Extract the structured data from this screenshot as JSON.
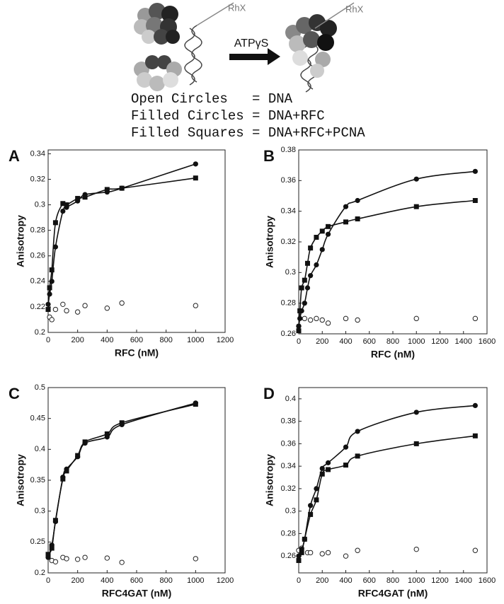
{
  "header": {
    "rhx_left": "RhX",
    "rhx_right": "RhX",
    "arrow_label": "ATPγS",
    "legend": [
      "Open Circles   = DNA",
      "Filled Circles = DNA+RFC",
      "Filled Squares = DNA+RFC+PCNA"
    ]
  },
  "chart_data": [
    {
      "type": "scatter",
      "panel_label": "A",
      "xlabel": "RFC (nM)",
      "ylabel": "Anisotropy",
      "xlim": [
        0,
        1200
      ],
      "xticks": [
        0,
        200,
        400,
        600,
        800,
        1000,
        1200
      ],
      "ylim": [
        0.2,
        0.343
      ],
      "yticks": [
        0.2,
        0.22,
        0.24,
        0.26,
        0.28,
        0.3,
        0.32,
        0.34
      ],
      "series": [
        {
          "marker": "open-circle",
          "fit": false,
          "x": [
            10,
            25,
            50,
            100,
            125,
            200,
            250,
            400,
            500,
            1000
          ],
          "values": [
            0.212,
            0.21,
            0.218,
            0.222,
            0.217,
            0.216,
            0.221,
            0.219,
            0.223,
            0.221
          ]
        },
        {
          "marker": "filled-circle",
          "fit": true,
          "x": [
            0,
            10,
            25,
            50,
            100,
            125,
            200,
            250,
            400,
            500,
            1000
          ],
          "values": [
            0.222,
            0.23,
            0.24,
            0.267,
            0.295,
            0.298,
            0.303,
            0.308,
            0.31,
            0.313,
            0.332
          ]
        },
        {
          "marker": "filled-square",
          "fit": true,
          "x": [
            0,
            10,
            25,
            50,
            100,
            125,
            200,
            250,
            400,
            500,
            1000
          ],
          "values": [
            0.218,
            0.235,
            0.249,
            0.286,
            0.301,
            0.3,
            0.305,
            0.306,
            0.312,
            0.313,
            0.321
          ]
        }
      ]
    },
    {
      "type": "scatter",
      "panel_label": "B",
      "xlabel": "RFC (nM)",
      "ylabel": "Anisotropy",
      "xlim": [
        0,
        1600
      ],
      "xticks": [
        0,
        200,
        400,
        600,
        800,
        1000,
        1200,
        1400,
        1600
      ],
      "ylim": [
        0.26,
        0.38
      ],
      "yticks": [
        0.26,
        0.28,
        0.3,
        0.32,
        0.34,
        0.36,
        0.38
      ],
      "series": [
        {
          "marker": "open-circle",
          "fit": false,
          "x": [
            0,
            50,
            100,
            150,
            200,
            250,
            400,
            500,
            1000,
            1500
          ],
          "values": [
            0.265,
            0.27,
            0.269,
            0.27,
            0.269,
            0.267,
            0.27,
            0.269,
            0.27,
            0.27
          ]
        },
        {
          "marker": "filled-circle",
          "fit": true,
          "x": [
            0,
            10,
            25,
            50,
            75,
            100,
            150,
            200,
            250,
            400,
            500,
            1000,
            1500
          ],
          "values": [
            0.265,
            0.27,
            0.275,
            0.28,
            0.29,
            0.298,
            0.305,
            0.315,
            0.325,
            0.343,
            0.347,
            0.361,
            0.366
          ]
        },
        {
          "marker": "filled-square",
          "fit": true,
          "x": [
            0,
            10,
            25,
            50,
            75,
            100,
            150,
            200,
            250,
            400,
            500,
            1000,
            1500
          ],
          "values": [
            0.262,
            0.275,
            0.29,
            0.295,
            0.306,
            0.316,
            0.323,
            0.327,
            0.33,
            0.333,
            0.335,
            0.343,
            0.347
          ]
        }
      ]
    },
    {
      "type": "scatter",
      "panel_label": "C",
      "xlabel": "RFC4GAT (nM)",
      "ylabel": "Anisotropy",
      "xlim": [
        0,
        1200
      ],
      "xticks": [
        0,
        200,
        400,
        600,
        800,
        1000,
        1200
      ],
      "ylim": [
        0.2,
        0.5
      ],
      "yticks": [
        0.2,
        0.25,
        0.3,
        0.35,
        0.4,
        0.45,
        0.5
      ],
      "series": [
        {
          "marker": "open-circle",
          "fit": false,
          "x": [
            25,
            50,
            100,
            125,
            200,
            250,
            400,
            500,
            1000
          ],
          "values": [
            0.22,
            0.218,
            0.225,
            0.223,
            0.222,
            0.225,
            0.224,
            0.217,
            0.223
          ]
        },
        {
          "marker": "filled-circle",
          "fit": true,
          "x": [
            0,
            25,
            50,
            100,
            125,
            200,
            250,
            400,
            500,
            1000
          ],
          "values": [
            0.225,
            0.245,
            0.283,
            0.355,
            0.368,
            0.388,
            0.41,
            0.42,
            0.44,
            0.475
          ]
        },
        {
          "marker": "filled-square",
          "fit": true,
          "x": [
            0,
            25,
            50,
            100,
            125,
            200,
            250,
            400,
            500,
            1000
          ],
          "values": [
            0.23,
            0.24,
            0.285,
            0.352,
            0.365,
            0.39,
            0.412,
            0.425,
            0.443,
            0.473
          ]
        }
      ]
    },
    {
      "type": "scatter",
      "panel_label": "D",
      "xlabel": "RFC4GAT (nM)",
      "ylabel": "Anisotropy",
      "xlim": [
        0,
        1600
      ],
      "xticks": [
        0,
        200,
        400,
        600,
        800,
        1000,
        1200,
        1400,
        1600
      ],
      "ylim": [
        0.245,
        0.41
      ],
      "yticks": [
        0.26,
        0.28,
        0.3,
        0.32,
        0.34,
        0.36,
        0.38,
        0.4
      ],
      "series": [
        {
          "marker": "open-circle",
          "fit": false,
          "x": [
            0,
            25,
            75,
            100,
            200,
            250,
            400,
            500,
            1000,
            1500
          ],
          "values": [
            0.265,
            0.267,
            0.263,
            0.263,
            0.262,
            0.263,
            0.26,
            0.265,
            0.266,
            0.265
          ]
        },
        {
          "marker": "filled-circle",
          "fit": true,
          "x": [
            0,
            25,
            50,
            100,
            150,
            200,
            250,
            400,
            500,
            1000,
            1500
          ],
          "values": [
            0.26,
            0.266,
            0.275,
            0.305,
            0.32,
            0.338,
            0.343,
            0.357,
            0.371,
            0.388,
            0.394
          ]
        },
        {
          "marker": "filled-square",
          "fit": true,
          "x": [
            0,
            25,
            50,
            100,
            150,
            200,
            250,
            400,
            500,
            1000,
            1500
          ],
          "values": [
            0.256,
            0.263,
            0.275,
            0.297,
            0.31,
            0.333,
            0.337,
            0.341,
            0.349,
            0.36,
            0.367
          ]
        }
      ]
    }
  ]
}
